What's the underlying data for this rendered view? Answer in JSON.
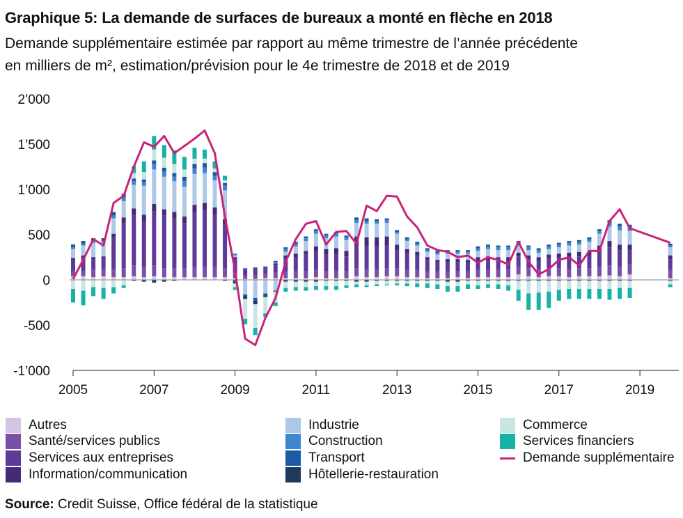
{
  "title": "Graphique 5: La demande de surfaces de bureaux a monté en flèche en 2018",
  "subtitle_line1": "Demande supplémentaire estimée par rapport au même trimestre de l’année précédente",
  "subtitle_line2": "en milliers de m², estimation/prévision pour le 4e trimestre de 2018 et de 2019",
  "source_label": "Source:",
  "source_text": "Credit Suisse, Office fédéral de la statistique",
  "chart_data": {
    "type": "bar",
    "stacked": true,
    "y_ticks": [
      "2’000",
      "1’500",
      "1’000",
      "500",
      "0",
      "-500",
      "-1’000"
    ],
    "y_tick_values": [
      2000,
      1500,
      1000,
      500,
      0,
      -500,
      -1000
    ],
    "ylim": [
      -1000,
      2000
    ],
    "x_ticks": [
      "2005",
      "2007",
      "2009",
      "2011",
      "2013",
      "2015",
      "2017",
      "2019"
    ],
    "x_tick_years": [
      2005,
      2007,
      2009,
      2011,
      2013,
      2015,
      2017,
      2019
    ],
    "xlim": [
      2005,
      2020
    ],
    "x": [
      2005.0,
      2005.25,
      2005.5,
      2005.75,
      2006.0,
      2006.25,
      2006.5,
      2006.75,
      2007.0,
      2007.25,
      2007.5,
      2007.75,
      2008.0,
      2008.25,
      2008.5,
      2008.75,
      2009.0,
      2009.25,
      2009.5,
      2009.75,
      2010.0,
      2010.25,
      2010.5,
      2010.75,
      2011.0,
      2011.25,
      2011.5,
      2011.75,
      2012.0,
      2012.25,
      2012.5,
      2012.75,
      2013.0,
      2013.25,
      2013.5,
      2013.75,
      2014.0,
      2014.25,
      2014.5,
      2014.75,
      2015.0,
      2015.25,
      2015.5,
      2015.75,
      2016.0,
      2016.25,
      2016.5,
      2016.75,
      2017.0,
      2017.25,
      2017.5,
      2017.75,
      2018.0,
      2018.25,
      2018.5,
      2018.75,
      2019.75
    ],
    "grid": false,
    "series": [
      {
        "name": "Autres",
        "color": "#d3c6e4",
        "values": [
          40,
          40,
          30,
          40,
          30,
          30,
          40,
          30,
          40,
          30,
          30,
          30,
          30,
          30,
          30,
          30,
          20,
          10,
          10,
          20,
          20,
          20,
          20,
          20,
          30,
          20,
          20,
          20,
          40,
          30,
          30,
          40,
          40,
          30,
          30,
          20,
          20,
          20,
          30,
          20,
          30,
          30,
          30,
          30,
          60,
          40,
          30,
          40,
          40,
          30,
          40,
          40,
          40,
          50,
          40,
          60,
          20
        ]
      },
      {
        "name": "Santé/services publics",
        "color": "#7a4fa8",
        "values": [
          60,
          60,
          80,
          80,
          90,
          100,
          120,
          110,
          120,
          100,
          100,
          100,
          110,
          120,
          110,
          100,
          60,
          40,
          40,
          50,
          60,
          70,
          80,
          80,
          80,
          80,
          80,
          80,
          90,
          90,
          90,
          90,
          90,
          80,
          80,
          70,
          70,
          70,
          70,
          70,
          80,
          80,
          80,
          80,
          80,
          90,
          90,
          90,
          90,
          90,
          90,
          90,
          100,
          110,
          110,
          110,
          90
        ]
      },
      {
        "name": "Services aux entreprises",
        "color": "#5e3a98",
        "values": [
          120,
          140,
          120,
          120,
          350,
          500,
          550,
          500,
          600,
          580,
          550,
          500,
          600,
          620,
          580,
          480,
          150,
          60,
          70,
          60,
          80,
          150,
          150,
          180,
          200,
          180,
          180,
          160,
          250,
          250,
          250,
          250,
          200,
          180,
          160,
          130,
          100,
          110,
          100,
          100,
          100,
          110,
          100,
          100,
          120,
          100,
          90,
          110,
          120,
          130,
          130,
          140,
          180,
          200,
          180,
          160,
          120
        ]
      },
      {
        "name": "Information/communication",
        "color": "#452a78",
        "values": [
          20,
          30,
          20,
          20,
          40,
          60,
          80,
          80,
          80,
          70,
          70,
          70,
          90,
          80,
          80,
          60,
          20,
          10,
          10,
          10,
          20,
          30,
          40,
          40,
          60,
          60,
          70,
          60,
          100,
          100,
          100,
          100,
          60,
          50,
          40,
          30,
          30,
          30,
          30,
          30,
          40,
          40,
          40,
          40,
          40,
          40,
          40,
          40,
          40,
          50,
          50,
          50,
          60,
          70,
          60,
          60,
          40
        ]
      },
      {
        "name": "Industrie",
        "color": "#aec8e8",
        "values": [
          100,
          110,
          160,
          150,
          170,
          180,
          260,
          320,
          380,
          360,
          340,
          330,
          340,
          330,
          300,
          320,
          20,
          -160,
          -200,
          -150,
          -120,
          40,
          80,
          110,
          140,
          120,
          130,
          120,
          150,
          150,
          150,
          150,
          120,
          90,
          70,
          60,
          60,
          60,
          60,
          70,
          70,
          80,
          80,
          80,
          80,
          60,
          50,
          60,
          70,
          80,
          80,
          100,
          130,
          160,
          160,
          150,
          90
        ]
      },
      {
        "name": "Construction",
        "color": "#3f86cc",
        "values": [
          20,
          20,
          20,
          20,
          30,
          40,
          40,
          40,
          60,
          60,
          50,
          60,
          60,
          60,
          50,
          50,
          20,
          10,
          10,
          10,
          20,
          30,
          30,
          30,
          30,
          30,
          30,
          30,
          30,
          30,
          30,
          30,
          20,
          20,
          20,
          20,
          20,
          20,
          20,
          20,
          30,
          30,
          30,
          30,
          30,
          30,
          30,
          30,
          30,
          30,
          30,
          30,
          30,
          40,
          40,
          40,
          20
        ]
      },
      {
        "name": "Transport",
        "color": "#1d5aa6",
        "values": [
          20,
          20,
          20,
          20,
          30,
          30,
          30,
          30,
          40,
          40,
          40,
          40,
          40,
          40,
          30,
          30,
          -20,
          -20,
          -30,
          -20,
          10,
          20,
          20,
          20,
          20,
          20,
          20,
          20,
          30,
          30,
          20,
          20,
          20,
          20,
          20,
          20,
          20,
          20,
          20,
          20,
          20,
          20,
          20,
          20,
          20,
          20,
          20,
          20,
          20,
          20,
          20,
          20,
          20,
          30,
          30,
          30,
          20
        ]
      },
      {
        "name": "Hôtellerie-restauration",
        "color": "#1d3a5e",
        "values": [
          10,
          10,
          10,
          10,
          10,
          10,
          -10,
          -20,
          -30,
          -20,
          -10,
          10,
          10,
          10,
          10,
          -10,
          -20,
          -30,
          -40,
          -20,
          -10,
          -20,
          -20,
          -20,
          -20,
          -10,
          -10,
          -10,
          -20,
          -20,
          -10,
          -10,
          -10,
          -10,
          -10,
          -10,
          -10,
          -20,
          -20,
          -10,
          -10,
          -10,
          -10,
          -10,
          -10,
          -10,
          -10,
          -10,
          -10,
          -10,
          -10,
          -10,
          -10,
          -10,
          -10,
          -10,
          -10
        ]
      },
      {
        "name": "Commerce",
        "color": "#c7e6e3",
        "values": [
          -100,
          -120,
          -80,
          -90,
          -80,
          -60,
          60,
          80,
          120,
          110,
          100,
          80,
          60,
          50,
          40,
          30,
          -40,
          -220,
          -260,
          -180,
          -120,
          -70,
          -60,
          -60,
          -50,
          -60,
          -60,
          -50,
          -30,
          -40,
          -40,
          -40,
          -30,
          -30,
          -30,
          -30,
          -40,
          -50,
          -50,
          -40,
          -50,
          -40,
          -40,
          -50,
          -100,
          -140,
          -130,
          -120,
          -100,
          -90,
          -90,
          -90,
          -90,
          -90,
          -80,
          -80,
          -40
        ]
      },
      {
        "name": "Services financiers",
        "color": "#18b1a6",
        "values": [
          -150,
          -160,
          -100,
          -120,
          -70,
          -30,
          80,
          120,
          150,
          140,
          150,
          140,
          120,
          100,
          80,
          50,
          -30,
          -60,
          -80,
          -40,
          -40,
          -40,
          -40,
          -40,
          -40,
          -40,
          -40,
          -30,
          -30,
          -20,
          -20,
          -10,
          -20,
          -30,
          -40,
          -50,
          -50,
          -60,
          -60,
          -50,
          -40,
          -40,
          -50,
          -60,
          -120,
          -180,
          -190,
          -180,
          -120,
          -110,
          -110,
          -110,
          -110,
          -120,
          -120,
          -110,
          -30
        ]
      },
      {
        "name": "Demande supplémentaire",
        "color": "#c8237a",
        "type": "line",
        "values": [
          10,
          220,
          450,
          380,
          850,
          930,
          1250,
          1520,
          1470,
          1590,
          1400,
          1480,
          1560,
          1650,
          1400,
          700,
          100,
          -650,
          -720,
          -420,
          -200,
          200,
          450,
          620,
          650,
          390,
          530,
          540,
          400,
          820,
          760,
          930,
          920,
          700,
          580,
          380,
          330,
          310,
          250,
          270,
          190,
          250,
          220,
          170,
          420,
          200,
          60,
          120,
          220,
          250,
          160,
          320,
          320,
          650,
          780,
          570,
          410
        ]
      }
    ],
    "line_points": {
      "x": [
        2005.0,
        2005.25,
        2005.5,
        2005.75,
        2006.0,
        2006.25,
        2006.5,
        2006.75,
        2007.0,
        2007.25,
        2007.5,
        2007.75,
        2008.0,
        2008.25,
        2008.5,
        2008.75,
        2009.0,
        2009.25,
        2009.5,
        2009.75,
        2010.0,
        2010.25,
        2010.5,
        2010.75,
        2011.0,
        2011.25,
        2011.5,
        2011.75,
        2012.0,
        2012.25,
        2012.5,
        2012.75,
        2013.0,
        2013.25,
        2013.5,
        2013.75,
        2014.0,
        2014.25,
        2014.5,
        2014.75,
        2015.0,
        2015.25,
        2015.5,
        2015.75,
        2016.0,
        2016.25,
        2016.5,
        2016.75,
        2017.0,
        2017.25,
        2017.5,
        2017.75,
        2018.0,
        2018.25,
        2018.5,
        2018.75,
        2019.75
      ],
      "y": [
        10,
        220,
        450,
        380,
        850,
        930,
        1250,
        1520,
        1470,
        1590,
        1400,
        1480,
        1560,
        1650,
        1400,
        700,
        100,
        -650,
        -720,
        -420,
        -200,
        200,
        450,
        620,
        650,
        390,
        530,
        540,
        400,
        820,
        760,
        930,
        920,
        700,
        580,
        380,
        330,
        310,
        250,
        270,
        190,
        250,
        220,
        170,
        420,
        200,
        60,
        120,
        220,
        250,
        160,
        320,
        320,
        650,
        780,
        570,
        410
      ]
    }
  },
  "legend": [
    {
      "label": "Autres",
      "color": "#d3c6e4",
      "kind": "box"
    },
    {
      "label": "Santé/services publics",
      "color": "#7a4fa8",
      "kind": "box"
    },
    {
      "label": "Services aux entreprises",
      "color": "#5e3a98",
      "kind": "box"
    },
    {
      "label": "Information/communication",
      "color": "#452a78",
      "kind": "box"
    },
    {
      "label": "Industrie",
      "color": "#aec8e8",
      "kind": "box"
    },
    {
      "label": "Construction",
      "color": "#3f86cc",
      "kind": "box"
    },
    {
      "label": "Transport",
      "color": "#1d5aa6",
      "kind": "box"
    },
    {
      "label": "Hôtellerie-restauration",
      "color": "#1d3a5e",
      "kind": "box"
    },
    {
      "label": "Commerce",
      "color": "#c7e6e3",
      "kind": "box"
    },
    {
      "label": "Services financiers",
      "color": "#18b1a6",
      "kind": "box"
    },
    {
      "label": "Demande supplémentaire",
      "color": "#c8237a",
      "kind": "line"
    }
  ]
}
